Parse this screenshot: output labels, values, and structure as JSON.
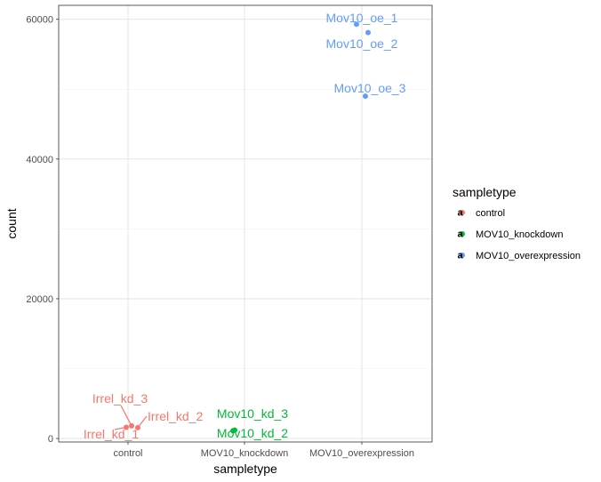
{
  "chart_data": {
    "type": "scatter",
    "xlabel": "sampletype",
    "ylabel": "count",
    "categories": [
      "control",
      "MOV10_knockdown",
      "MOV10_overexpression"
    ],
    "ylim": [
      -500,
      62000
    ],
    "yticks": [
      0,
      20000,
      40000,
      60000
    ],
    "ytick_labels": [
      "0",
      "20000",
      "40000",
      "60000"
    ],
    "grid": true,
    "legend": {
      "title": "sampletype",
      "position": "right",
      "entries": [
        "control",
        "MOV10_knockdown",
        "MOV10_overexpression"
      ]
    },
    "colors": {
      "control": "#f8766d",
      "MOV10_knockdown": "#00ba38",
      "MOV10_overexpression": "#619cff"
    },
    "series": [
      {
        "name": "control",
        "points": [
          {
            "x": "control",
            "y": 1600,
            "label": "Irrel_kd_1"
          },
          {
            "x": "control",
            "y": 1550,
            "label": "Irrel_kd_2"
          },
          {
            "x": "control",
            "y": 1800,
            "label": "Irrel_kd_3"
          }
        ]
      },
      {
        "name": "MOV10_knockdown",
        "points": [
          {
            "x": "MOV10_knockdown",
            "y": 1100,
            "label": "Mov10_kd_2"
          },
          {
            "x": "MOV10_knockdown",
            "y": 1200,
            "label": "Mov10_kd_3"
          }
        ]
      },
      {
        "name": "MOV10_overexpression",
        "points": [
          {
            "x": "MOV10_overexpression",
            "y": 59300,
            "label": "Mov10_oe_1"
          },
          {
            "x": "MOV10_overexpression",
            "y": 58100,
            "label": "Mov10_oe_2"
          },
          {
            "x": "MOV10_overexpression",
            "y": 49000,
            "label": "Mov10_oe_3"
          }
        ]
      }
    ]
  }
}
